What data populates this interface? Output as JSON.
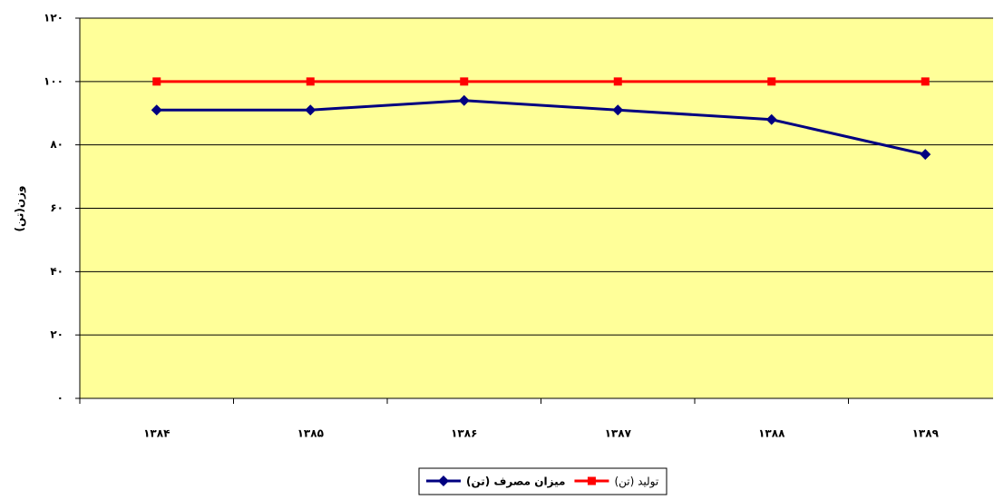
{
  "chart_data": {
    "type": "line",
    "y_label": "وزن(تن)",
    "categories": [
      "۱۳۸۴",
      "۱۳۸۵",
      "۱۳۸۶",
      "۱۳۸۷",
      "۱۳۸۸",
      "۱۳۸۹"
    ],
    "series": [
      {
        "name": "میزان مصرف (تن)",
        "color": "#000080",
        "marker": "diamond",
        "values": [
          91,
          91,
          94,
          91,
          88,
          77
        ]
      },
      {
        "name": "تولید (تن)",
        "color": "#ff0000",
        "marker": "square",
        "values": [
          100,
          100,
          100,
          100,
          100,
          100
        ]
      }
    ],
    "ylim": [
      0,
      120
    ],
    "yticks": [
      {
        "value": 0,
        "label": "۰"
      },
      {
        "value": 20,
        "label": "۲۰"
      },
      {
        "value": 40,
        "label": "۴۰"
      },
      {
        "value": 60,
        "label": "۶۰"
      },
      {
        "value": 80,
        "label": "۸۰"
      },
      {
        "value": 100,
        "label": "۱۰۰"
      },
      {
        "value": 120,
        "label": "۱۲۰"
      }
    ],
    "grid": true,
    "plot_background": "#ffff99",
    "legend": "bottom"
  }
}
